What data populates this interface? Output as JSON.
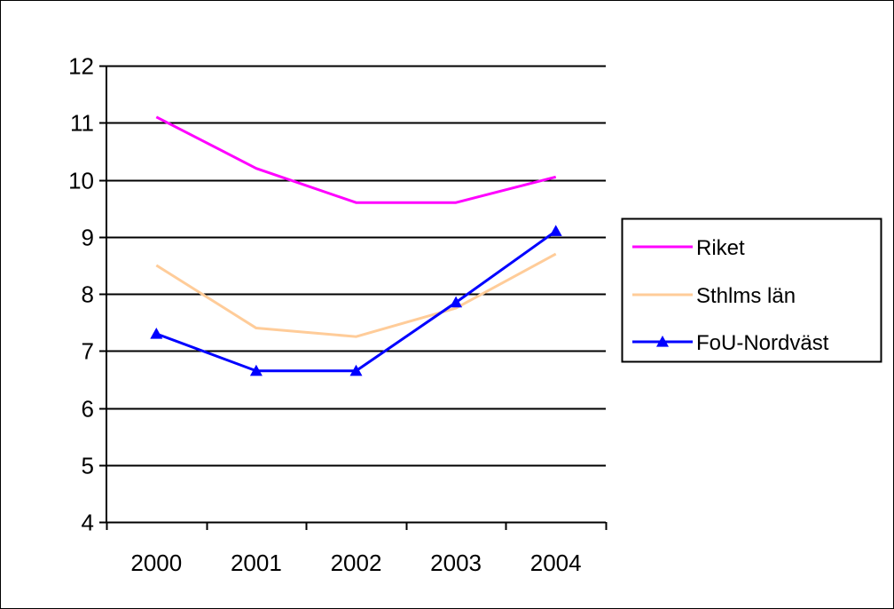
{
  "chart_data": {
    "type": "line",
    "title": "",
    "xlabel": "",
    "ylabel": "",
    "categories": [
      "2000",
      "2001",
      "2002",
      "2003",
      "2004"
    ],
    "ylim": [
      4,
      12
    ],
    "yticks": [
      4,
      5,
      6,
      7,
      8,
      9,
      10,
      11,
      12
    ],
    "grid": true,
    "legend_position": "right",
    "series": [
      {
        "name": "Riket",
        "values": [
          11.1,
          10.2,
          9.6,
          9.6,
          10.05
        ],
        "color": "#ff00ff",
        "marker": "none"
      },
      {
        "name": "Sthlms län",
        "values": [
          8.5,
          7.4,
          7.25,
          7.75,
          8.7
        ],
        "color": "#ffcc99",
        "marker": "none"
      },
      {
        "name": "FoU-Nordväst",
        "values": [
          7.3,
          6.65,
          6.65,
          7.85,
          9.1
        ],
        "color": "#0000ff",
        "marker": "triangle"
      }
    ]
  }
}
